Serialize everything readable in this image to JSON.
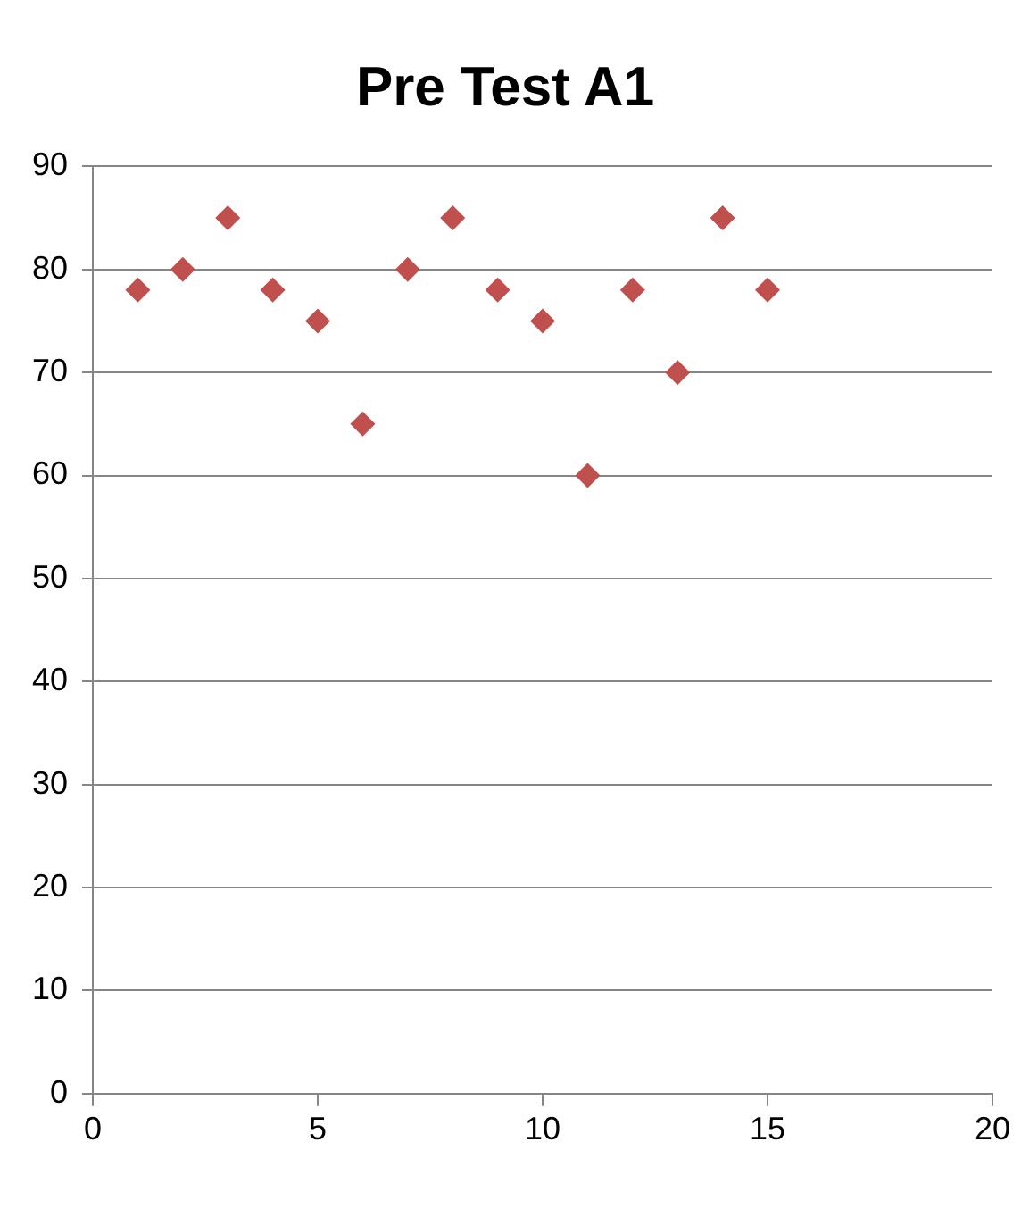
{
  "chart_data": {
    "type": "scatter",
    "title": "Pre Test A1",
    "x": [
      1,
      2,
      3,
      4,
      5,
      6,
      7,
      8,
      9,
      10,
      11,
      12,
      13,
      14,
      15
    ],
    "series": [
      {
        "color": "#c0504d",
        "values": [
          78,
          80,
          85,
          78,
          75,
          65,
          80,
          85,
          78,
          75,
          60,
          78,
          70,
          85,
          78
        ]
      }
    ],
    "xlim": [
      0,
      20
    ],
    "xticks": [
      0,
      5,
      10,
      15,
      20
    ],
    "ylim": [
      0,
      90
    ],
    "yticks": [
      0,
      10,
      20,
      30,
      40,
      50,
      60,
      70,
      80,
      90
    ],
    "grid": "y",
    "legend": false,
    "marker": "diamond"
  }
}
